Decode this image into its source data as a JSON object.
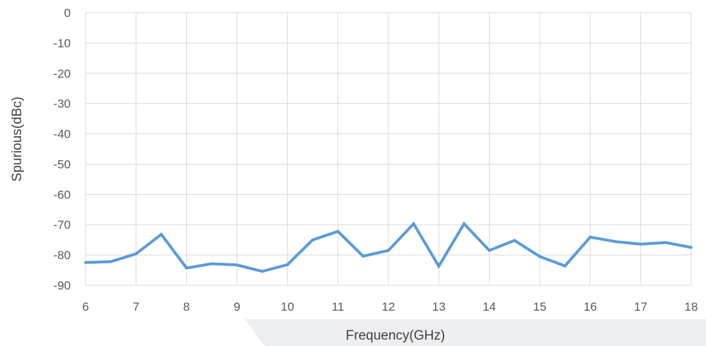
{
  "chart_data": {
    "type": "line",
    "xlabel": "Frequency(GHz)",
    "ylabel": "Spurious(dBc)",
    "xlim": [
      6,
      18
    ],
    "ylim": [
      -90,
      0
    ],
    "x_ticks": [
      "6",
      "7",
      "8",
      "9",
      "10",
      "11",
      "12",
      "13",
      "14",
      "15",
      "16",
      "17",
      "18"
    ],
    "y_ticks": [
      "0",
      "-10",
      "-20",
      "-30",
      "-40",
      "-50",
      "-60",
      "-70",
      "-80",
      "-90"
    ],
    "grid": true,
    "legend": "none",
    "line_color": "#5B9BD5",
    "series": [
      {
        "x": [
          6,
          6.5,
          7,
          7.5,
          8,
          8.5,
          9,
          9.5,
          10,
          10.5,
          11,
          11.5,
          12,
          12.5,
          13,
          13.5,
          14,
          14.5,
          15,
          15.5,
          16,
          16.5,
          17,
          17.5,
          18
        ],
        "values": [
          -82.5,
          -82.2,
          -79.6,
          -73.2,
          -84.3,
          -82.9,
          -83.3,
          -85.4,
          -83.2,
          -75.0,
          -72.2,
          -80.4,
          -78.5,
          -69.7,
          -83.7,
          -69.7,
          -78.5,
          -75.2,
          -80.5,
          -83.6,
          -74.1,
          -75.6,
          -76.4,
          -75.9,
          -77.5
        ]
      }
    ]
  }
}
